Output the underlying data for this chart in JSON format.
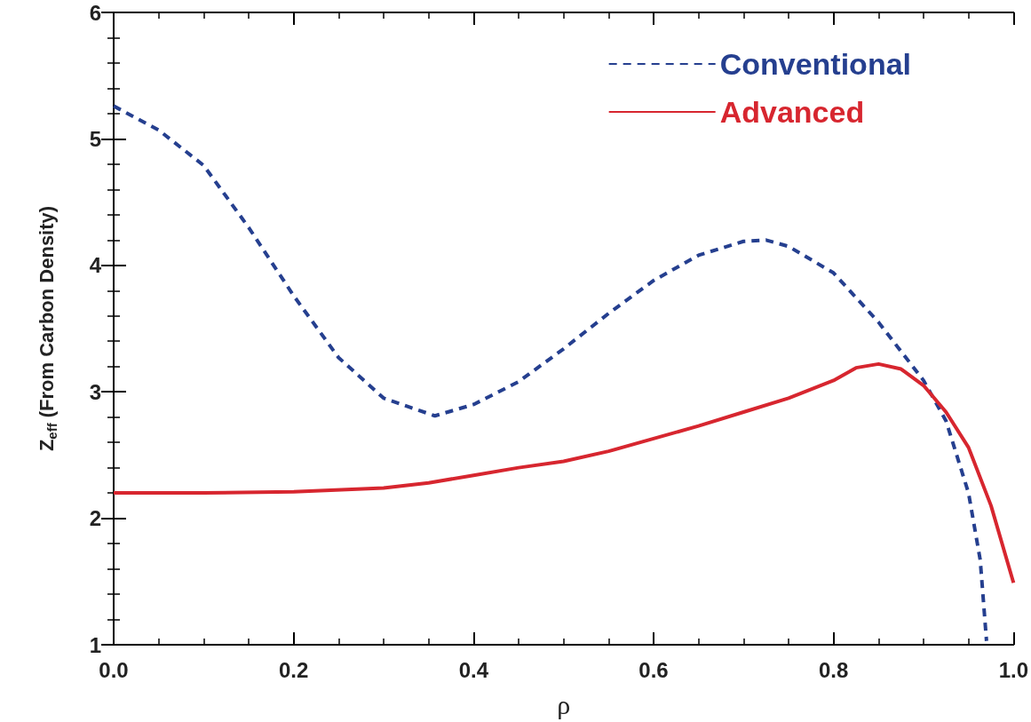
{
  "chart_data": {
    "type": "line",
    "xlabel": "ρ",
    "ylabel": "Z$_{eff}$ (From Carbon Density)",
    "xlim": [
      0,
      1
    ],
    "xticks": [
      {
        "value": 0,
        "label": "0.0"
      },
      0.2,
      0.4,
      0.6,
      0.8,
      {
        "value": 1,
        "label": "1.0"
      }
    ],
    "ylim": [
      1,
      6
    ],
    "yticks": [
      1,
      2,
      3,
      4,
      5,
      6
    ],
    "grid": false,
    "legend": "top right",
    "marker": "none",
    "series": [
      {
        "name": "Conventional",
        "color": "#253f8f",
        "line_style": "dashed",
        "x": [
          0,
          0.05,
          0.1,
          0.15,
          0.2,
          0.25,
          0.3,
          0.357,
          0.4,
          0.45,
          0.5,
          0.55,
          0.6,
          0.65,
          0.7,
          0.725,
          0.75,
          0.8,
          0.85,
          0.9,
          0.925,
          0.95,
          0.963,
          0.97
        ],
        "values": [
          5.26,
          5.07,
          4.79,
          4.3,
          3.76,
          3.27,
          2.95,
          2.81,
          2.9,
          3.08,
          3.34,
          3.62,
          3.88,
          4.08,
          4.19,
          4.2,
          4.15,
          3.94,
          3.55,
          3.09,
          2.77,
          2.2,
          1.67,
          1.03
        ]
      },
      {
        "name": "Advanced",
        "color": "#d7262f",
        "line_style": "solid",
        "x": [
          0,
          0.1,
          0.2,
          0.3,
          0.35,
          0.4,
          0.45,
          0.5,
          0.55,
          0.6,
          0.65,
          0.7,
          0.75,
          0.8,
          0.825,
          0.85,
          0.875,
          0.9,
          0.925,
          0.95,
          0.975,
          1
        ],
        "values": [
          2.2,
          2.2,
          2.21,
          2.24,
          2.28,
          2.34,
          2.4,
          2.45,
          2.53,
          2.63,
          2.73,
          2.84,
          2.95,
          3.09,
          3.19,
          3.22,
          3.18,
          3.05,
          2.84,
          2.56,
          2.1,
          1.49
        ]
      }
    ]
  }
}
